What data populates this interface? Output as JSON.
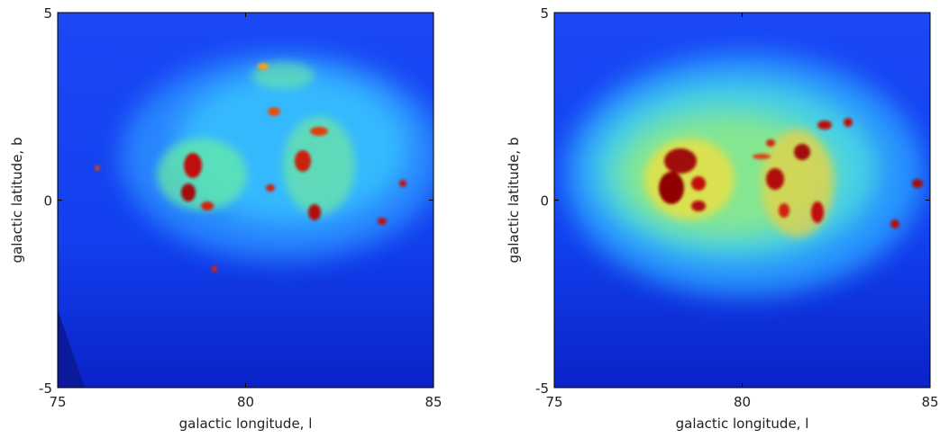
{
  "chart_data": [
    {
      "type": "image",
      "xlabel": "galactic longitude, l",
      "ylabel": "galactic latitude, b",
      "xlim": [
        75,
        85
      ],
      "ylim": [
        -5,
        5
      ],
      "xticks": [
        75,
        80,
        85
      ],
      "yticks": [
        -5,
        0,
        5
      ]
    },
    {
      "type": "image",
      "xlabel": "galactic longitude, l",
      "ylabel": "galactic latitude, b",
      "xlim": [
        75,
        85
      ],
      "ylim": [
        -5,
        5
      ],
      "xticks": [
        75,
        80,
        85
      ],
      "yticks": [
        -5,
        0,
        5
      ]
    }
  ]
}
